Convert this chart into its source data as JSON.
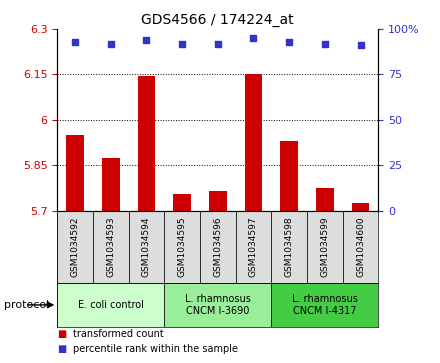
{
  "title": "GDS4566 / 174224_at",
  "samples": [
    "GSM1034592",
    "GSM1034593",
    "GSM1034594",
    "GSM1034595",
    "GSM1034596",
    "GSM1034597",
    "GSM1034598",
    "GSM1034599",
    "GSM1034600"
  ],
  "bar_values": [
    5.95,
    5.875,
    6.145,
    5.755,
    5.765,
    6.15,
    5.93,
    5.775,
    5.725
  ],
  "percentile_values": [
    93,
    92,
    94,
    92,
    92,
    95,
    93,
    92,
    91
  ],
  "ylim": [
    5.7,
    6.3
  ],
  "yticks": [
    5.7,
    5.85,
    6.0,
    6.15,
    6.3
  ],
  "ytick_labels": [
    "5.7",
    "5.85",
    "6",
    "6.15",
    "6.3"
  ],
  "right_yticks": [
    0,
    25,
    50,
    75,
    100
  ],
  "right_ytick_labels": [
    "0",
    "25",
    "50",
    "75",
    "100%"
  ],
  "bar_color": "#cc0000",
  "dot_color": "#3333cc",
  "groups": [
    {
      "label": "E. coli control",
      "start": 0,
      "end": 3,
      "color": "#ccffcc"
    },
    {
      "label": "L. rhamnosus\nCNCM I-3690",
      "start": 3,
      "end": 6,
      "color": "#99ee99"
    },
    {
      "label": "L. rhamnosus\nCNCM I-4317",
      "start": 6,
      "end": 9,
      "color": "#44cc44"
    }
  ],
  "legend_items": [
    {
      "color": "#cc0000",
      "label": "transformed count"
    },
    {
      "color": "#3333cc",
      "label": "percentile rank within the sample"
    }
  ],
  "protocol_label": "protocol",
  "bar_width": 0.5
}
